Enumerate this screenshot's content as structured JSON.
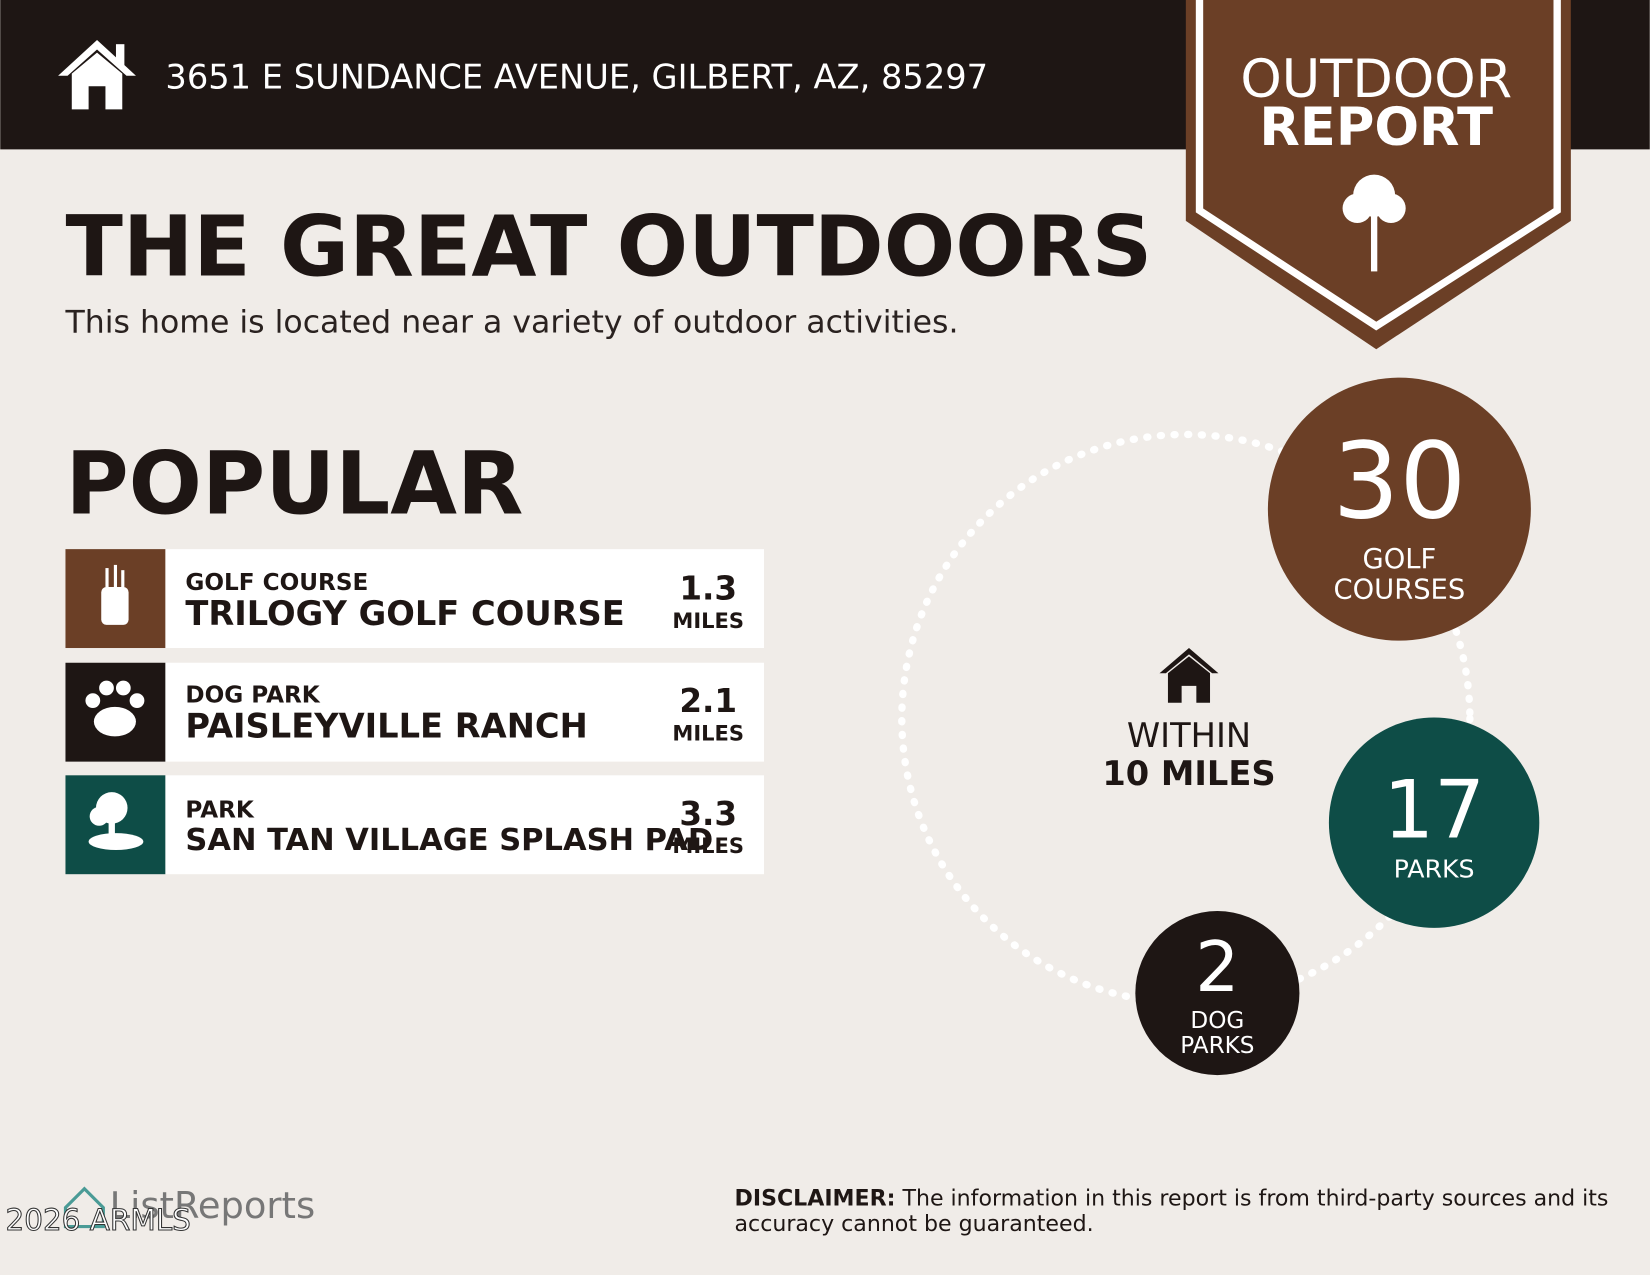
{
  "header": {
    "address": "3651 E SUNDANCE AVENUE, GILBERT, AZ, 85297",
    "badge_lines": [
      "OUTDOOR",
      "REPORT"
    ]
  },
  "title": "THE GREAT OUTDOORS",
  "subtitle": "This home is located near a variety of outdoor activities.",
  "popular": {
    "heading": "POPULAR",
    "items": [
      {
        "category": "GOLF COURSE",
        "name": "TRILOGY GOLF COURSE",
        "distance": 1.3,
        "unit": "MILES"
      },
      {
        "category": "DOG PARK",
        "name": "PAISLEYVILLE RANCH",
        "distance": 2.1,
        "unit": "MILES"
      },
      {
        "category": "PARK",
        "name": "SAN TAN VILLAGE SPLASH PAD",
        "distance": 3.3,
        "unit": "MILES"
      }
    ]
  },
  "counts": {
    "within": [
      "WITHIN",
      "10 MILES"
    ],
    "items": [
      {
        "value": 30,
        "label_lines": [
          "GOLF",
          "COURSES"
        ]
      },
      {
        "value": 17,
        "label_lines": [
          "PARKS"
        ]
      },
      {
        "value": 2,
        "label_lines": [
          "DOG",
          "PARKS"
        ]
      }
    ]
  },
  "footer": {
    "brand": "ListReports",
    "watermark": "2026 ARMLS",
    "disclaimer_label": "DISCLAIMER:",
    "disclaimer_lines": [
      "The information in this report is from third-party sources and its",
      "accuracy cannot be guaranteed."
    ]
  }
}
